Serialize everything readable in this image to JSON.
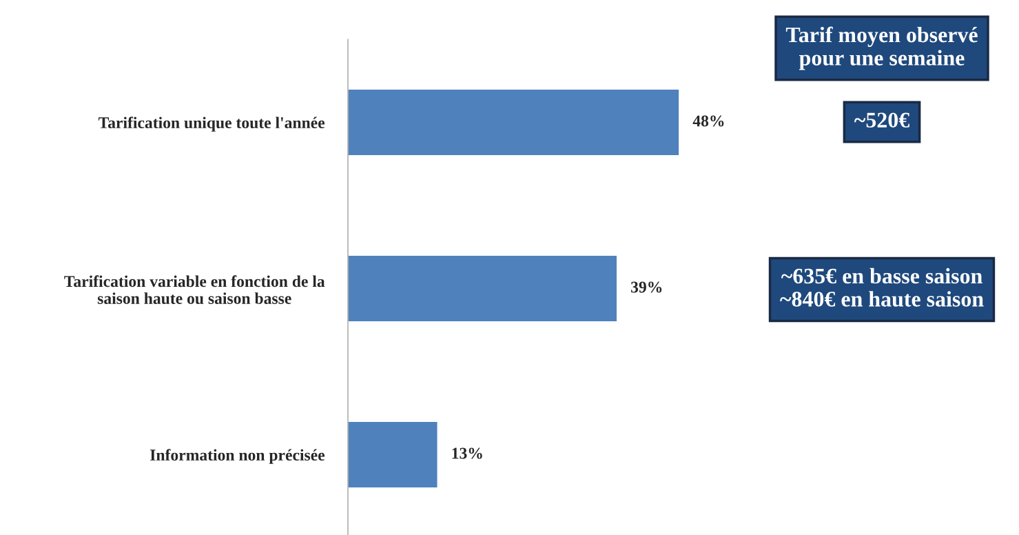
{
  "chart_data": {
    "type": "bar",
    "orientation": "horizontal",
    "categories": [
      "Tarification unique toute l'année",
      "Tarification variable en fonction de la\nsaison haute ou saison basse",
      "Information non précisée"
    ],
    "values": [
      48,
      39,
      13
    ],
    "color": "#4f81bd",
    "value_labels": [
      "48%",
      "39%",
      "13%"
    ],
    "grid": false,
    "legend": false,
    "tick_labels": "y",
    "annotations": [
      "Tarif moyen observé\npour une semaine",
      "~520€",
      "~635€ en basse saison\n~840€ en haute saison"
    ]
  }
}
